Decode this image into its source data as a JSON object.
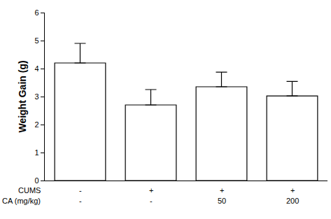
{
  "chart_data": {
    "type": "bar",
    "y_label": "Weight Gain (g)",
    "x_rows": [
      {
        "label": "CUMS",
        "values": [
          "-",
          "+",
          "+",
          "+"
        ]
      },
      {
        "label": "CA (mg/kg)",
        "values": [
          "-",
          "-",
          "50",
          "200"
        ]
      }
    ],
    "values": [
      4.2,
      2.7,
      3.35,
      3.02
    ],
    "error": [
      0.7,
      0.55,
      0.52,
      0.52
    ],
    "color": "#ffffff",
    "ylim": [
      0,
      6
    ],
    "yticks": [
      0,
      1,
      2,
      3,
      4,
      5,
      6
    ],
    "grid": false
  }
}
